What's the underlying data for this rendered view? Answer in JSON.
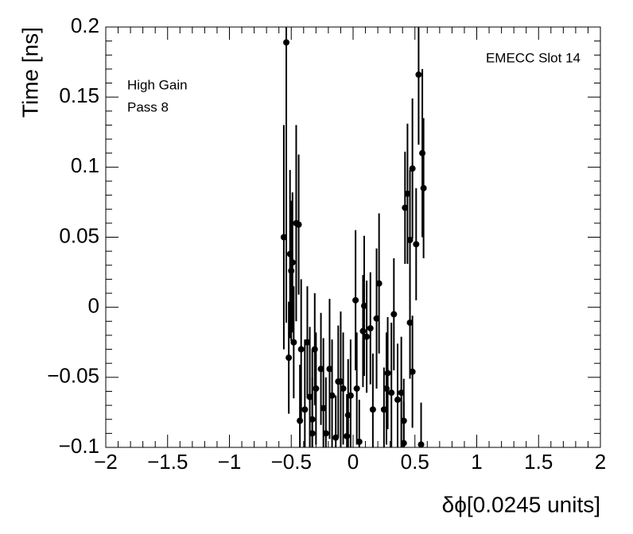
{
  "chart_data": {
    "type": "scatter",
    "xlabel": "δϕ[0.0245 units]",
    "ylabel": "Time [ns]",
    "annotations": [
      "EMECC Slot 14",
      "High Gain",
      "Pass 8"
    ],
    "color": "#000000",
    "xlim": [
      -2,
      2
    ],
    "ylim": [
      -0.1,
      0.2
    ],
    "xticks": [
      {
        "value": -2,
        "label": "−2"
      },
      {
        "value": -1.5,
        "label": "−1.5"
      },
      {
        "value": -1,
        "label": "−1"
      },
      {
        "value": -0.5,
        "label": "−0.5"
      },
      0,
      0.5,
      1,
      1.5,
      2
    ],
    "yticks": [
      {
        "value": -0.1,
        "label": "−0.1"
      },
      {
        "value": -0.05,
        "label": "−0.05"
      },
      0,
      0.05,
      0.1,
      0.15,
      0.2
    ],
    "x": [
      -0.54,
      -0.56,
      -0.51,
      -0.49,
      -0.46,
      -0.44,
      -0.48,
      -0.42,
      -0.43,
      -0.39,
      -0.37,
      -0.35,
      -0.33,
      -0.31,
      -0.3,
      -0.33,
      -0.26,
      -0.24,
      -0.22,
      -0.19,
      -0.17,
      -0.14,
      -0.12,
      -0.1,
      -0.08,
      -0.05,
      -0.04,
      -0.02,
      0.02,
      0.03,
      0.05,
      0.08,
      0.09,
      0.11,
      0.14,
      0.16,
      0.19,
      0.21,
      0.25,
      0.27,
      0.28,
      0.31,
      0.33,
      0.36,
      0.39,
      0.41,
      0.41,
      0.42,
      0.44,
      0.46,
      0.48,
      0.48,
      0.51,
      0.53,
      0.55,
      0.56,
      0.57,
      0.46,
      -0.5,
      -0.52
    ],
    "values": [
      0.189,
      0.05,
      0.038,
      0.032,
      0.06,
      0.059,
      -0.025,
      -0.03,
      -0.081,
      -0.073,
      -0.025,
      -0.064,
      -0.09,
      -0.03,
      -0.058,
      -0.08,
      -0.044,
      -0.072,
      -0.09,
      -0.044,
      -0.063,
      -0.093,
      -0.053,
      -0.053,
      -0.058,
      -0.092,
      -0.077,
      -0.063,
      0.005,
      -0.058,
      -0.096,
      -0.017,
      0.001,
      -0.021,
      -0.015,
      -0.073,
      -0.008,
      0.017,
      -0.073,
      -0.058,
      -0.047,
      -0.061,
      -0.005,
      -0.066,
      -0.061,
      -0.081,
      -0.097,
      0.071,
      0.081,
      -0.011,
      -0.046,
      0.099,
      0.045,
      0.166,
      -0.098,
      0.11,
      0.085,
      0.048,
      0.026,
      -0.036
    ],
    "errors": [
      0.2,
      0.08,
      0.06,
      0.05,
      0.07,
      0.05,
      0.04,
      0.05,
      0.04,
      0.05,
      0.04,
      0.05,
      0.04,
      0.04,
      0.04,
      0.05,
      0.04,
      0.05,
      0.04,
      0.05,
      0.04,
      0.03,
      0.04,
      0.05,
      0.04,
      0.03,
      0.04,
      0.04,
      0.05,
      0.04,
      0.03,
      0.04,
      0.05,
      0.04,
      0.04,
      0.04,
      0.05,
      0.05,
      0.03,
      0.04,
      0.04,
      0.05,
      0.04,
      0.04,
      0.04,
      0.03,
      0.03,
      0.04,
      0.05,
      0.04,
      0.04,
      0.05,
      0.04,
      0.05,
      0.03,
      0.06,
      0.05,
      0.05,
      0.05,
      0.04
    ]
  }
}
